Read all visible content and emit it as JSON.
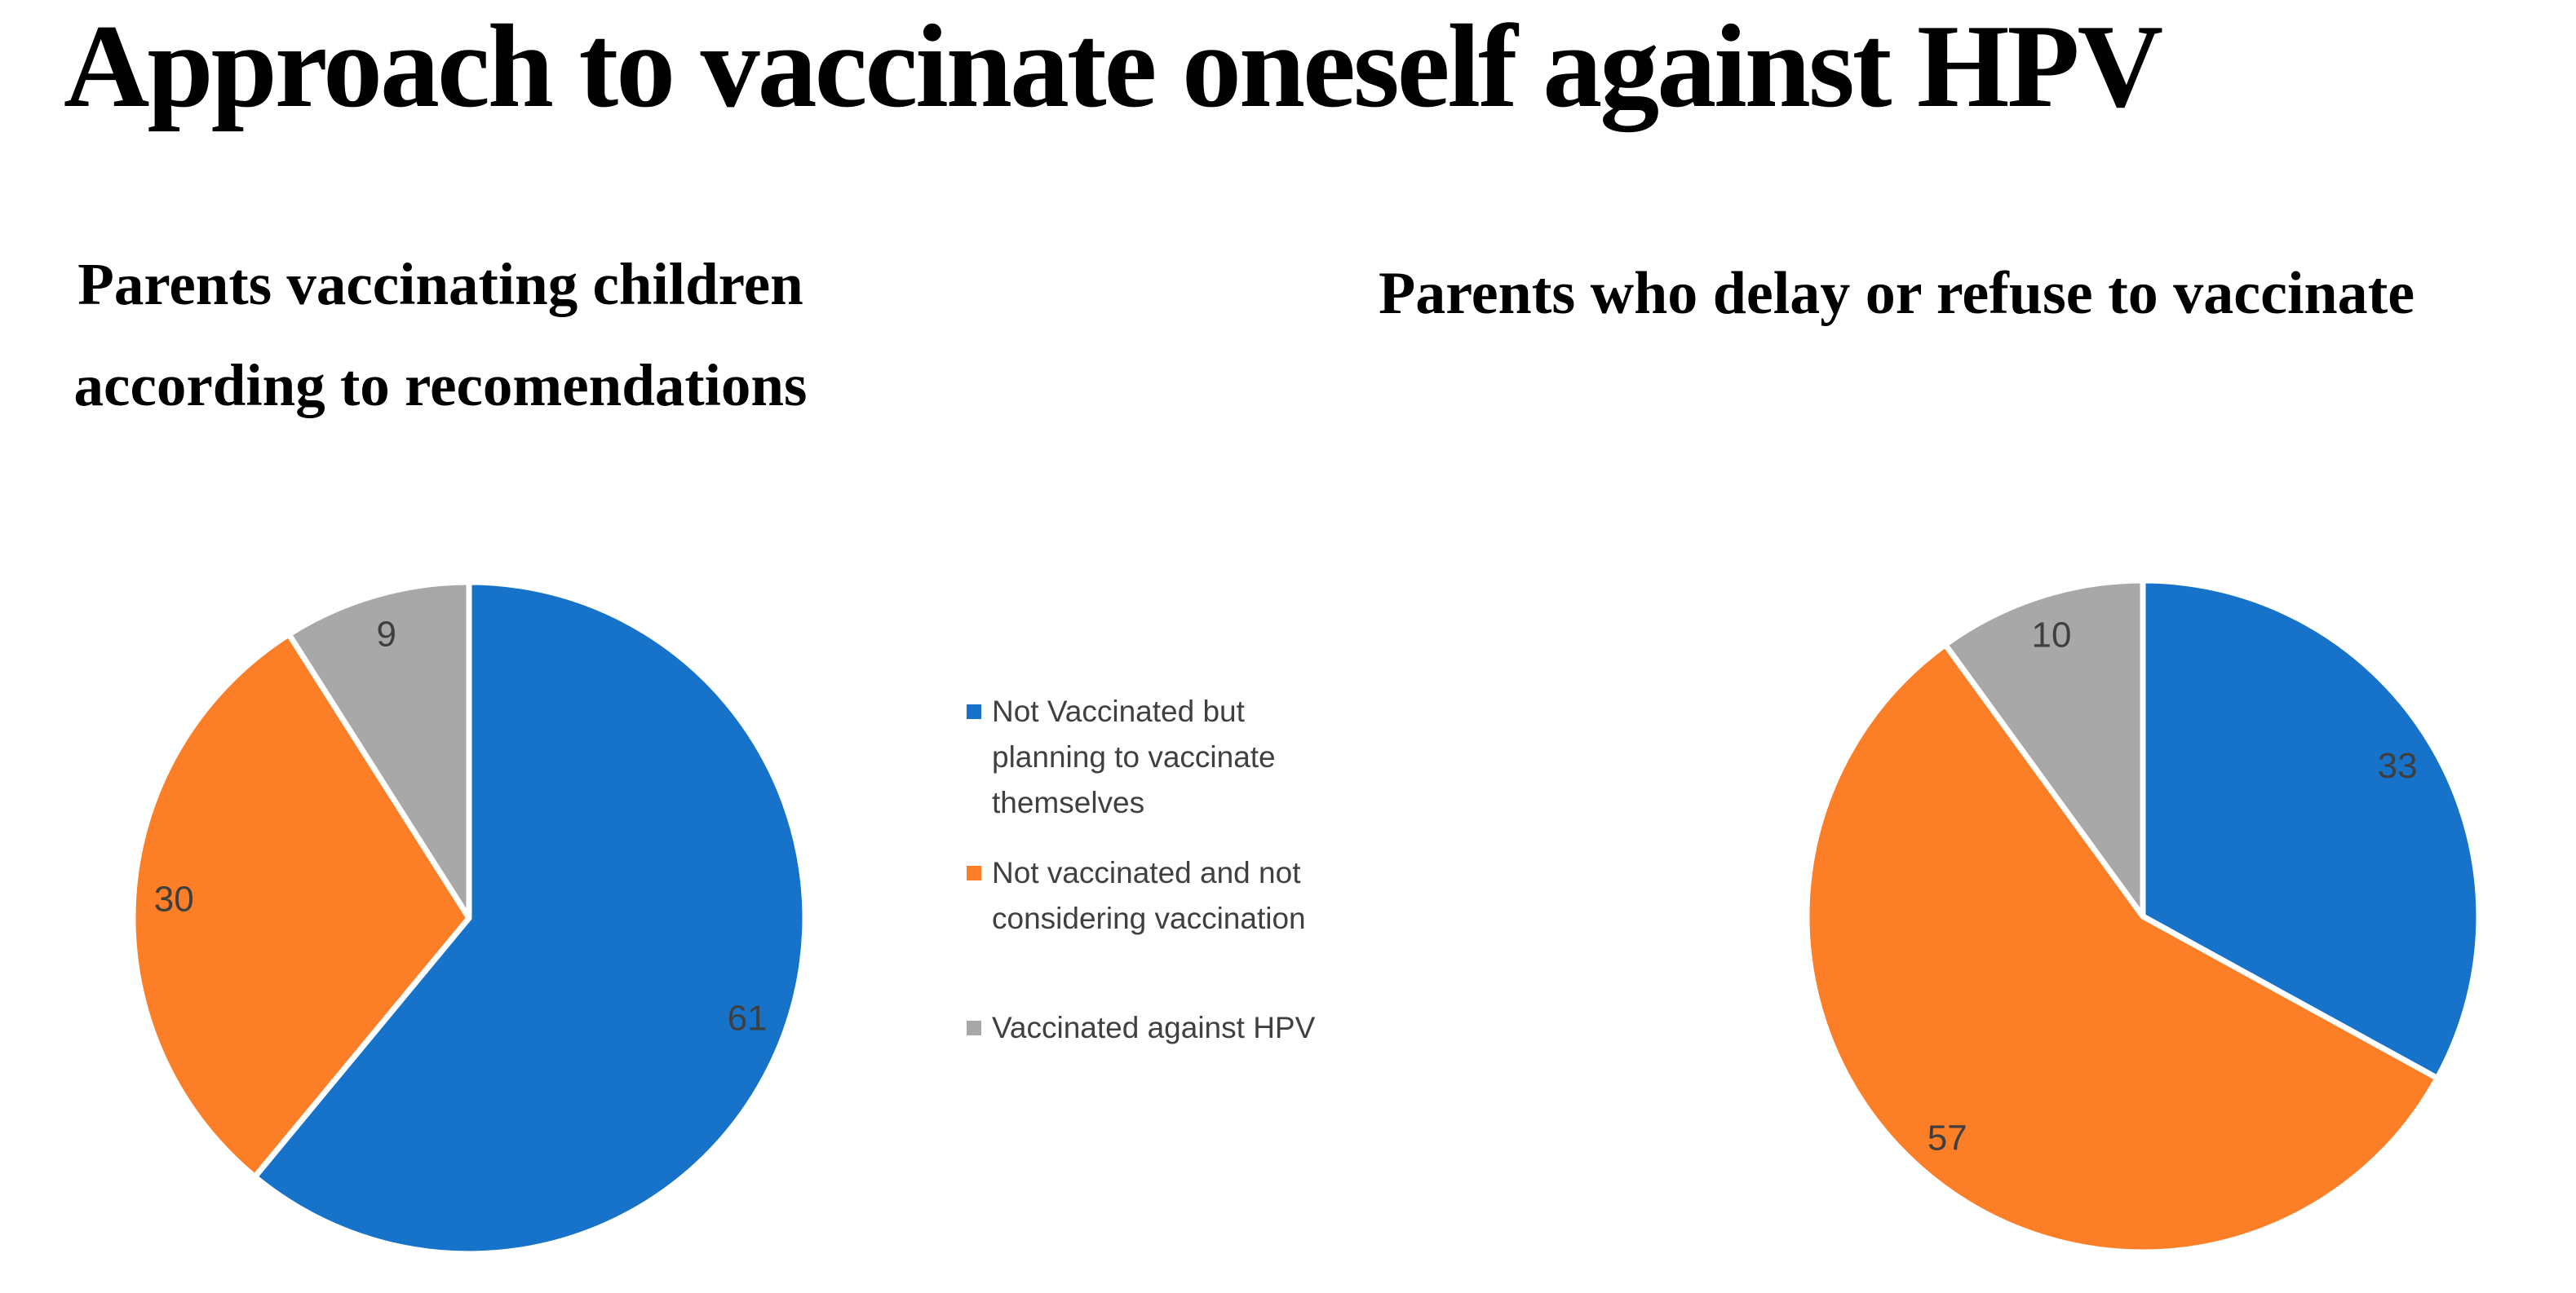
{
  "page": {
    "title": "Approach to vaccinate oneself against HPV"
  },
  "left_chart": {
    "subtitle_line1": "Parents vaccinating children",
    "subtitle_line2": "according to recomendations"
  },
  "right_chart": {
    "subtitle": "Parents who delay or refuse to vaccinate"
  },
  "legend": {
    "position": "center-between-pies",
    "items": [
      {
        "label": "Not Vaccinated but planning to vaccinate themselves",
        "lines": [
          "Not Vaccinated but",
          "planning to vaccinate",
          "themselves"
        ],
        "color": "#1673c9"
      },
      {
        "label": "Not vaccinated and not considering vaccination",
        "lines": [
          "Not vaccinated and not",
          "considering vaccination"
        ],
        "color": "#fc7e27"
      },
      {
        "label": "Vaccinated against HPV",
        "lines": [
          "Vaccinated against HPV"
        ],
        "color": "#a8a8a8"
      }
    ]
  },
  "chart_data": [
    {
      "type": "pie",
      "title": "Parents vaccinating children according to recomendations",
      "categories": [
        "Not Vaccinated but planning to vaccinate themselves",
        "Not vaccinated and not considering vaccination",
        "Vaccinated against HPV"
      ],
      "values": [
        61,
        30,
        9
      ],
      "colors": [
        "#1673c9",
        "#fc7e27",
        "#a8a8a8"
      ],
      "slice_names": [
        "not-vaccinated-planning",
        "not-vaccinated-not-considering",
        "vaccinated-against-hpv"
      ],
      "data_labels": [
        61,
        30,
        9
      ],
      "start_angle_deg": 0,
      "direction": "clockwise",
      "label_color": "#3f3f3f",
      "separator_color": "#ffffff"
    },
    {
      "type": "pie",
      "title": "Parents who delay or refuse to vaccinate",
      "categories": [
        "Not Vaccinated but planning to vaccinate themselves",
        "Not vaccinated and not considering vaccination",
        "Vaccinated against HPV"
      ],
      "values": [
        33,
        57,
        10
      ],
      "colors": [
        "#1673c9",
        "#fc7e27",
        "#a8a8a8"
      ],
      "slice_names": [
        "not-vaccinated-planning",
        "not-vaccinated-not-considering",
        "vaccinated-against-hpv"
      ],
      "data_labels": [
        33,
        57,
        10
      ],
      "start_angle_deg": 0,
      "direction": "clockwise",
      "label_color": "#3f3f3f",
      "separator_color": "#ffffff"
    }
  ]
}
